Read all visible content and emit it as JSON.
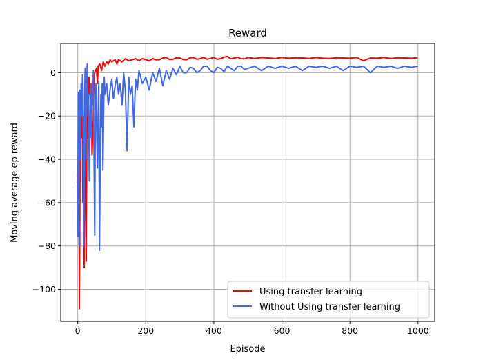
{
  "chart_data": {
    "type": "line",
    "title": "Reward",
    "xlabel": "Episode",
    "ylabel": "Moving average ep reward",
    "xlim": [
      -50,
      1049
    ],
    "ylim": [
      -114.8,
      13.5
    ],
    "xticks": [
      0,
      200,
      400,
      600,
      800,
      1000
    ],
    "yticks": [
      -100,
      -80,
      -60,
      -40,
      -20,
      0
    ],
    "xtick_labels": [
      "0",
      "200",
      "400",
      "600",
      "800",
      "1000"
    ],
    "ytick_labels": [
      "−100",
      "−80",
      "−60",
      "−40",
      "−20",
      "0"
    ],
    "grid": true,
    "legend_position": "lower-right",
    "series": [
      {
        "name": "Using transfer learning",
        "color": "#ff0000",
        "points": [
          [
            0,
            -51
          ],
          [
            2,
            -35
          ],
          [
            4,
            -60
          ],
          [
            5,
            -109
          ],
          [
            7,
            -40
          ],
          [
            9,
            -15
          ],
          [
            11,
            -30
          ],
          [
            13,
            -10
          ],
          [
            15,
            -60
          ],
          [
            17,
            -20
          ],
          [
            19,
            -90
          ],
          [
            21,
            -25
          ],
          [
            23,
            -50
          ],
          [
            25,
            -87
          ],
          [
            27,
            -20
          ],
          [
            29,
            -5
          ],
          [
            31,
            -30
          ],
          [
            33,
            -2
          ],
          [
            36,
            -10
          ],
          [
            39,
            -5
          ],
          [
            42,
            -38
          ],
          [
            45,
            -25
          ],
          [
            48,
            -3
          ],
          [
            50,
            0
          ],
          [
            55,
            2
          ],
          [
            58,
            -5
          ],
          [
            60,
            3
          ],
          [
            65,
            4
          ],
          [
            70,
            1
          ],
          [
            75,
            5
          ],
          [
            80,
            3
          ],
          [
            85,
            5
          ],
          [
            90,
            4
          ],
          [
            95,
            6
          ],
          [
            100,
            5
          ],
          [
            110,
            6
          ],
          [
            115,
            4
          ],
          [
            120,
            6
          ],
          [
            130,
            5
          ],
          [
            140,
            6.5
          ],
          [
            150,
            5.5
          ],
          [
            160,
            6
          ],
          [
            170,
            6.5
          ],
          [
            180,
            5.5
          ],
          [
            190,
            6.5
          ],
          [
            200,
            6
          ],
          [
            210,
            5.5
          ],
          [
            220,
            6.5
          ],
          [
            230,
            6
          ],
          [
            240,
            6
          ],
          [
            250,
            6.8
          ],
          [
            260,
            7
          ],
          [
            270,
            6.1
          ],
          [
            280,
            6.2
          ],
          [
            290,
            6.9
          ],
          [
            300,
            6.8
          ],
          [
            310,
            6.1
          ],
          [
            320,
            6
          ],
          [
            330,
            6.9
          ],
          [
            340,
            7
          ],
          [
            350,
            6.2
          ],
          [
            360,
            6.5
          ],
          [
            370,
            7.1
          ],
          [
            380,
            6.2
          ],
          [
            390,
            6.6
          ],
          [
            400,
            7
          ],
          [
            410,
            6.2
          ],
          [
            420,
            6.5
          ],
          [
            430,
            7.2
          ],
          [
            440,
            7.5
          ],
          [
            450,
            6.4
          ],
          [
            460,
            6.8
          ],
          [
            470,
            7.1
          ],
          [
            480,
            6.5
          ],
          [
            490,
            6.4
          ],
          [
            500,
            7
          ],
          [
            520,
            6.6
          ],
          [
            540,
            7
          ],
          [
            560,
            6.8
          ],
          [
            580,
            6.6
          ],
          [
            600,
            7
          ],
          [
            620,
            6.7
          ],
          [
            640,
            6.9
          ],
          [
            660,
            6.8
          ],
          [
            680,
            6.6
          ],
          [
            700,
            7
          ],
          [
            720,
            6.7
          ],
          [
            740,
            6.6
          ],
          [
            760,
            6.9
          ],
          [
            780,
            6.8
          ],
          [
            800,
            6.7
          ],
          [
            820,
            7
          ],
          [
            840,
            5.5
          ],
          [
            860,
            6.8
          ],
          [
            880,
            6.7
          ],
          [
            900,
            7
          ],
          [
            920,
            6.6
          ],
          [
            940,
            6.9
          ],
          [
            960,
            6.8
          ],
          [
            980,
            6.7
          ],
          [
            999,
            6.9
          ]
        ]
      },
      {
        "name": "Without Using transfer learning",
        "color": "#4169e1",
        "points": [
          [
            0,
            -76
          ],
          [
            1,
            -35
          ],
          [
            2,
            -9
          ],
          [
            3,
            -60
          ],
          [
            4,
            -80
          ],
          [
            5,
            -30
          ],
          [
            6,
            -8
          ],
          [
            8,
            -40
          ],
          [
            10,
            -5
          ],
          [
            12,
            -20
          ],
          [
            14,
            -1
          ],
          [
            16,
            -30
          ],
          [
            18,
            -80
          ],
          [
            20,
            -10
          ],
          [
            22,
            2
          ],
          [
            24,
            -40
          ],
          [
            26,
            -5
          ],
          [
            28,
            4
          ],
          [
            30,
            -20
          ],
          [
            32,
            -10
          ],
          [
            34,
            -50
          ],
          [
            36,
            -25
          ],
          [
            38,
            -5
          ],
          [
            40,
            -30
          ],
          [
            42,
            -10
          ],
          [
            44,
            -15
          ],
          [
            46,
            1
          ],
          [
            48,
            -40
          ],
          [
            50,
            -75
          ],
          [
            52,
            -10
          ],
          [
            54,
            -5
          ],
          [
            56,
            -30
          ],
          [
            58,
            -44
          ],
          [
            60,
            -20
          ],
          [
            62,
            -4
          ],
          [
            64,
            -82
          ],
          [
            66,
            -40
          ],
          [
            68,
            -10
          ],
          [
            70,
            -25
          ],
          [
            72,
            -5
          ],
          [
            74,
            -45
          ],
          [
            76,
            -20
          ],
          [
            78,
            -2
          ],
          [
            80,
            -10
          ],
          [
            85,
            -5
          ],
          [
            90,
            -15
          ],
          [
            95,
            -8
          ],
          [
            100,
            -3
          ],
          [
            105,
            -12
          ],
          [
            110,
            -6
          ],
          [
            115,
            -2
          ],
          [
            120,
            -10
          ],
          [
            125,
            -5
          ],
          [
            130,
            -15
          ],
          [
            135,
            0
          ],
          [
            140,
            -8
          ],
          [
            145,
            -36
          ],
          [
            150,
            -2
          ],
          [
            155,
            -10
          ],
          [
            160,
            -6
          ],
          [
            165,
            -25
          ],
          [
            170,
            -3
          ],
          [
            175,
            -8
          ],
          [
            180,
            1
          ],
          [
            190,
            -5
          ],
          [
            200,
            -2
          ],
          [
            210,
            -8
          ],
          [
            220,
            0
          ],
          [
            230,
            -4
          ],
          [
            240,
            2
          ],
          [
            250,
            -6
          ],
          [
            260,
            1
          ],
          [
            270,
            -3
          ],
          [
            280,
            2
          ],
          [
            290,
            -1
          ],
          [
            300,
            3
          ],
          [
            310,
            0
          ],
          [
            320,
            0
          ],
          [
            330,
            2.5
          ],
          [
            340,
            2
          ],
          [
            350,
            0
          ],
          [
            360,
            1
          ],
          [
            370,
            3
          ],
          [
            380,
            3
          ],
          [
            390,
            1
          ],
          [
            400,
            0
          ],
          [
            410,
            2.5
          ],
          [
            420,
            2
          ],
          [
            430,
            0.5
          ],
          [
            440,
            3
          ],
          [
            450,
            2
          ],
          [
            460,
            1
          ],
          [
            470,
            3
          ],
          [
            480,
            3
          ],
          [
            490,
            1.5
          ],
          [
            500,
            2
          ],
          [
            520,
            3
          ],
          [
            540,
            1
          ],
          [
            560,
            3
          ],
          [
            580,
            2
          ],
          [
            600,
            3
          ],
          [
            620,
            2
          ],
          [
            640,
            3
          ],
          [
            660,
            1
          ],
          [
            680,
            3
          ],
          [
            700,
            2.5
          ],
          [
            720,
            3
          ],
          [
            740,
            2
          ],
          [
            760,
            3
          ],
          [
            780,
            1
          ],
          [
            800,
            3
          ],
          [
            820,
            2.5
          ],
          [
            840,
            3
          ],
          [
            860,
            0
          ],
          [
            880,
            3
          ],
          [
            900,
            2.5
          ],
          [
            920,
            3
          ],
          [
            940,
            2
          ],
          [
            960,
            3
          ],
          [
            980,
            2.5
          ],
          [
            999,
            3
          ]
        ]
      }
    ]
  }
}
